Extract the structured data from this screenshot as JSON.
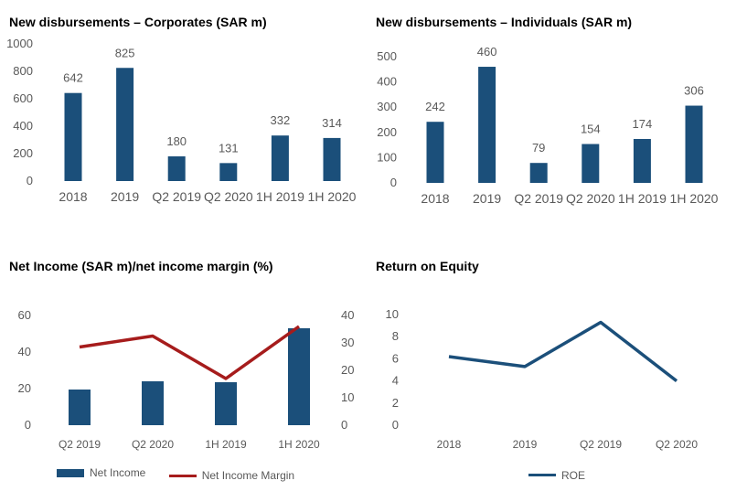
{
  "colors": {
    "bar": "#1b4f7a",
    "line_red": "#a61c1c",
    "line_blue": "#1b4f7a",
    "text": "#595959"
  },
  "chart_data": [
    {
      "id": "corporates",
      "type": "bar",
      "title": "New disbursements – Corporates (SAR m)",
      "categories": [
        "2018",
        "2019",
        "Q2 2019",
        "Q2 2020",
        "1H 2019",
        "1H 2020"
      ],
      "values": [
        642,
        825,
        180,
        131,
        332,
        314
      ],
      "data_labels": [
        "642",
        "825",
        "180",
        "131",
        "332",
        "314"
      ],
      "ylim": [
        0,
        1000
      ],
      "yticks": [
        "0",
        "200",
        "400",
        "600",
        "800",
        "1000"
      ],
      "grid": false
    },
    {
      "id": "individuals",
      "type": "bar",
      "title": "New disbursements – Individuals (SAR m)",
      "categories": [
        "2018",
        "2019",
        "Q2 2019",
        "Q2 2020",
        "1H 2019",
        "1H 2020"
      ],
      "values": [
        242,
        460,
        79,
        154,
        174,
        306
      ],
      "data_labels": [
        "242",
        "460",
        "79",
        "154",
        "174",
        "306"
      ],
      "ylim": [
        0,
        500
      ],
      "yticks": [
        "0",
        "100",
        "200",
        "300",
        "400",
        "500"
      ],
      "grid": false
    },
    {
      "id": "net_income",
      "type": "bar",
      "title": "Net Income (SAR m)/net income margin (%)",
      "categories": [
        "Q2 2019",
        "Q2 2020",
        "1H 2019",
        "1H 2020"
      ],
      "series": [
        {
          "name": "Net Income",
          "type": "bar",
          "axis": "left",
          "values": [
            19.5,
            24,
            23.5,
            53
          ]
        },
        {
          "name": "Net Income Margin",
          "type": "line",
          "axis": "right",
          "values": [
            28.5,
            32.5,
            17,
            36
          ]
        }
      ],
      "ylim": [
        0,
        60
      ],
      "yticks": [
        "0",
        "20",
        "40",
        "60"
      ],
      "y2lim": [
        0,
        40
      ],
      "y2ticks": [
        "0",
        "10",
        "20",
        "30",
        "40"
      ],
      "legend_position": "bottom",
      "grid": false
    },
    {
      "id": "roe",
      "type": "line",
      "title": "Return on Equity",
      "categories": [
        "2018",
        "2019",
        "Q2 2019",
        "Q2 2020"
      ],
      "series": [
        {
          "name": "ROE",
          "values": [
            6.2,
            5.3,
            9.3,
            4.0
          ]
        }
      ],
      "ylim": [
        0,
        10
      ],
      "yticks": [
        "0",
        "2",
        "4",
        "6",
        "8",
        "10"
      ],
      "legend_position": "bottom",
      "grid": false
    }
  ]
}
